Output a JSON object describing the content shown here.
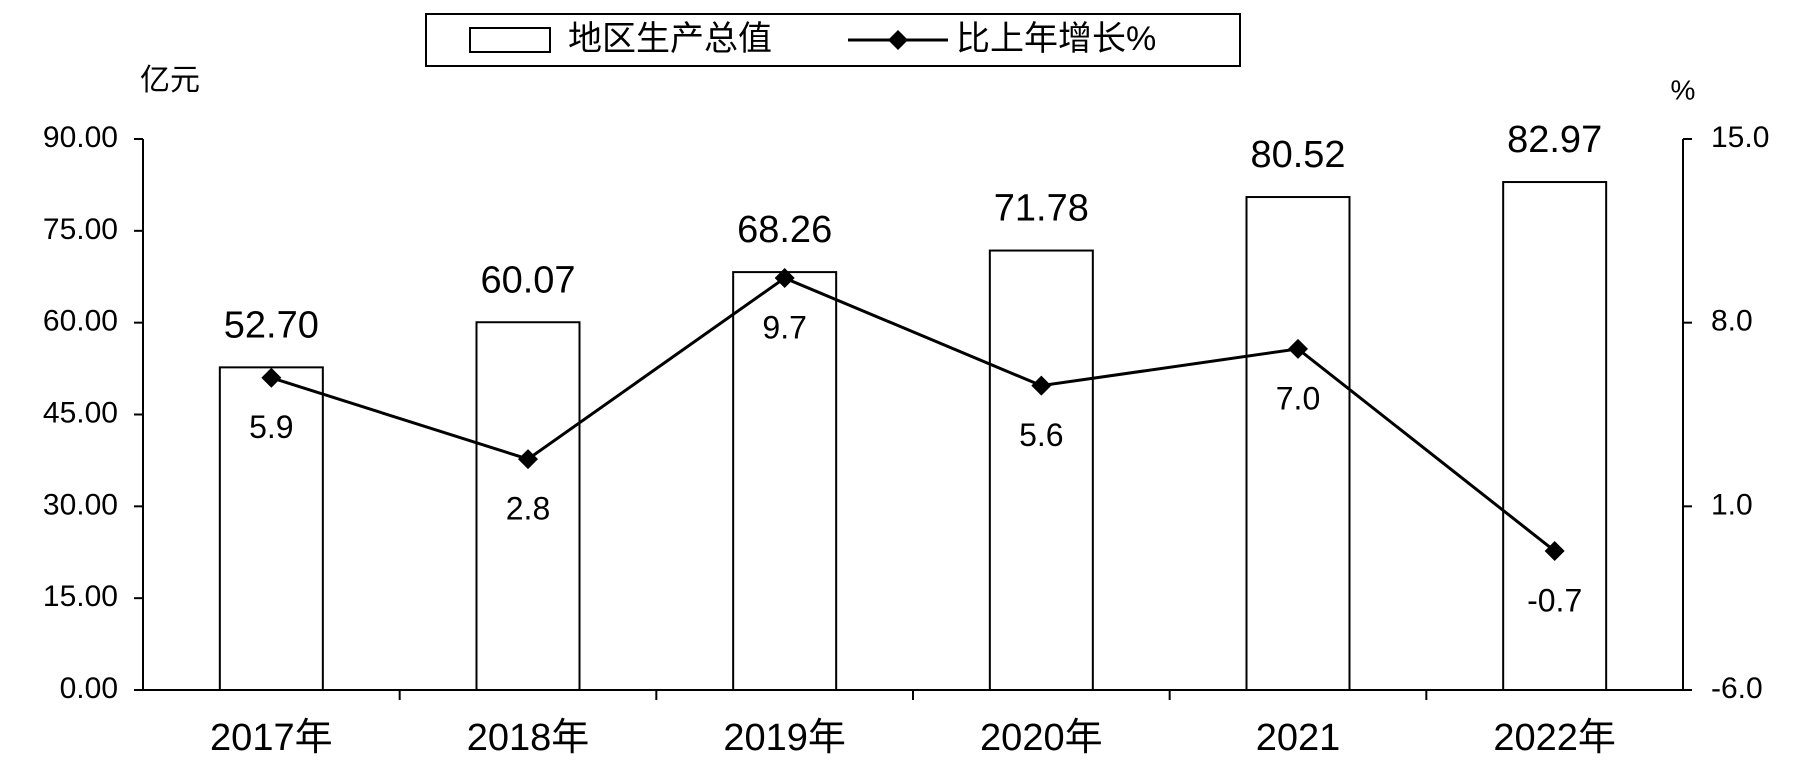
{
  "chart_data": {
    "type": "bar_line",
    "categories": [
      "2017年",
      "2018年",
      "2019年",
      "2020年",
      "2021",
      "2022年"
    ],
    "y_axis_label": "亿元",
    "y2_axis_label": "%",
    "ylim": [
      0,
      90
    ],
    "yticks": [
      {
        "value": 0,
        "label": "0.00"
      },
      {
        "value": 15,
        "label": "15.00"
      },
      {
        "value": 30,
        "label": "30.00"
      },
      {
        "value": 45,
        "label": "45.00"
      },
      {
        "value": 60,
        "label": "60.00"
      },
      {
        "value": 75,
        "label": "75.00"
      },
      {
        "value": 90,
        "label": "90.00"
      }
    ],
    "y2lim": [
      -6,
      15
    ],
    "y2ticks": [
      {
        "value": -6,
        "label": "-6.0"
      },
      {
        "value": 1,
        "label": "1.0"
      },
      {
        "value": 8,
        "label": "8.0"
      },
      {
        "value": 15,
        "label": "15.0"
      }
    ],
    "legend": "top",
    "series": [
      {
        "name": "地区生产总值",
        "type": "bar",
        "color": "#ffffff",
        "values": [
          52.7,
          60.07,
          68.26,
          71.78,
          80.52,
          82.97
        ],
        "value_labels": [
          "52.70",
          "60.07",
          "68.26",
          "71.78",
          "80.52",
          "82.97"
        ]
      },
      {
        "name": "比上年增长%",
        "type": "line",
        "axis": "y2",
        "color": "#000000",
        "values": [
          5.9,
          2.8,
          9.7,
          5.6,
          7.0,
          -0.7
        ],
        "value_labels": [
          "5.9",
          "2.8",
          "9.7",
          "5.6",
          "7.0",
          "-0.7"
        ]
      }
    ]
  }
}
